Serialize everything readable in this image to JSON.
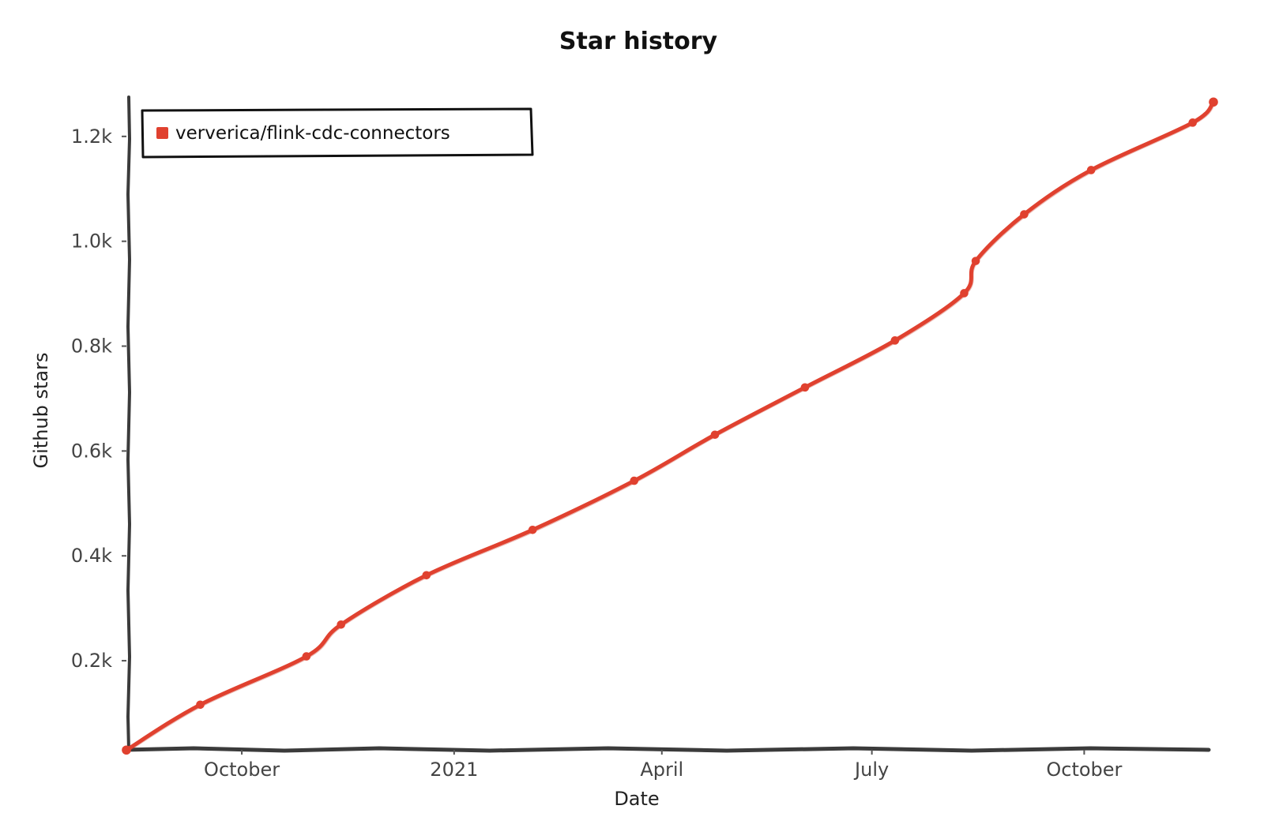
{
  "chart_data": {
    "type": "line",
    "title": "Star history",
    "xlabel": "Date",
    "ylabel": "Github stars",
    "x_ticks": [
      {
        "label": "October",
        "date": "2020-10-01"
      },
      {
        "label": "2021",
        "date": "2021-01-01"
      },
      {
        "label": "April",
        "date": "2021-04-01"
      },
      {
        "label": "July",
        "date": "2021-07-01"
      },
      {
        "label": "October",
        "date": "2021-10-01"
      }
    ],
    "y_ticks": [
      {
        "label": "0.2k",
        "value": 200
      },
      {
        "label": "0.4k",
        "value": 400
      },
      {
        "label": "0.6k",
        "value": 600
      },
      {
        "label": "0.8k",
        "value": 800
      },
      {
        "label": "1.0k",
        "value": 1000
      },
      {
        "label": "1.2k",
        "value": 1200
      }
    ],
    "xlim": [
      "2020-08-12",
      "2021-11-26"
    ],
    "ylim": [
      30,
      1275
    ],
    "grid": false,
    "legend_position": "top-left",
    "series": [
      {
        "name": "ververica/flink-cdc-connectors",
        "color": "#e0412f",
        "points": [
          {
            "x": "2020-08-12",
            "y": 30
          },
          {
            "x": "2020-09-13",
            "y": 117
          },
          {
            "x": "2020-10-29",
            "y": 208
          },
          {
            "x": "2020-11-13",
            "y": 268
          },
          {
            "x": "2020-12-20",
            "y": 363
          },
          {
            "x": "2021-02-04",
            "y": 450
          },
          {
            "x": "2021-03-20",
            "y": 543
          },
          {
            "x": "2021-04-24",
            "y": 631
          },
          {
            "x": "2021-06-02",
            "y": 722
          },
          {
            "x": "2021-07-11",
            "y": 811
          },
          {
            "x": "2021-08-10",
            "y": 900
          },
          {
            "x": "2021-08-15",
            "y": 962
          },
          {
            "x": "2021-09-05",
            "y": 1052
          },
          {
            "x": "2021-10-04",
            "y": 1136
          },
          {
            "x": "2021-11-17",
            "y": 1226
          },
          {
            "x": "2021-11-26",
            "y": 1266
          }
        ]
      }
    ]
  }
}
